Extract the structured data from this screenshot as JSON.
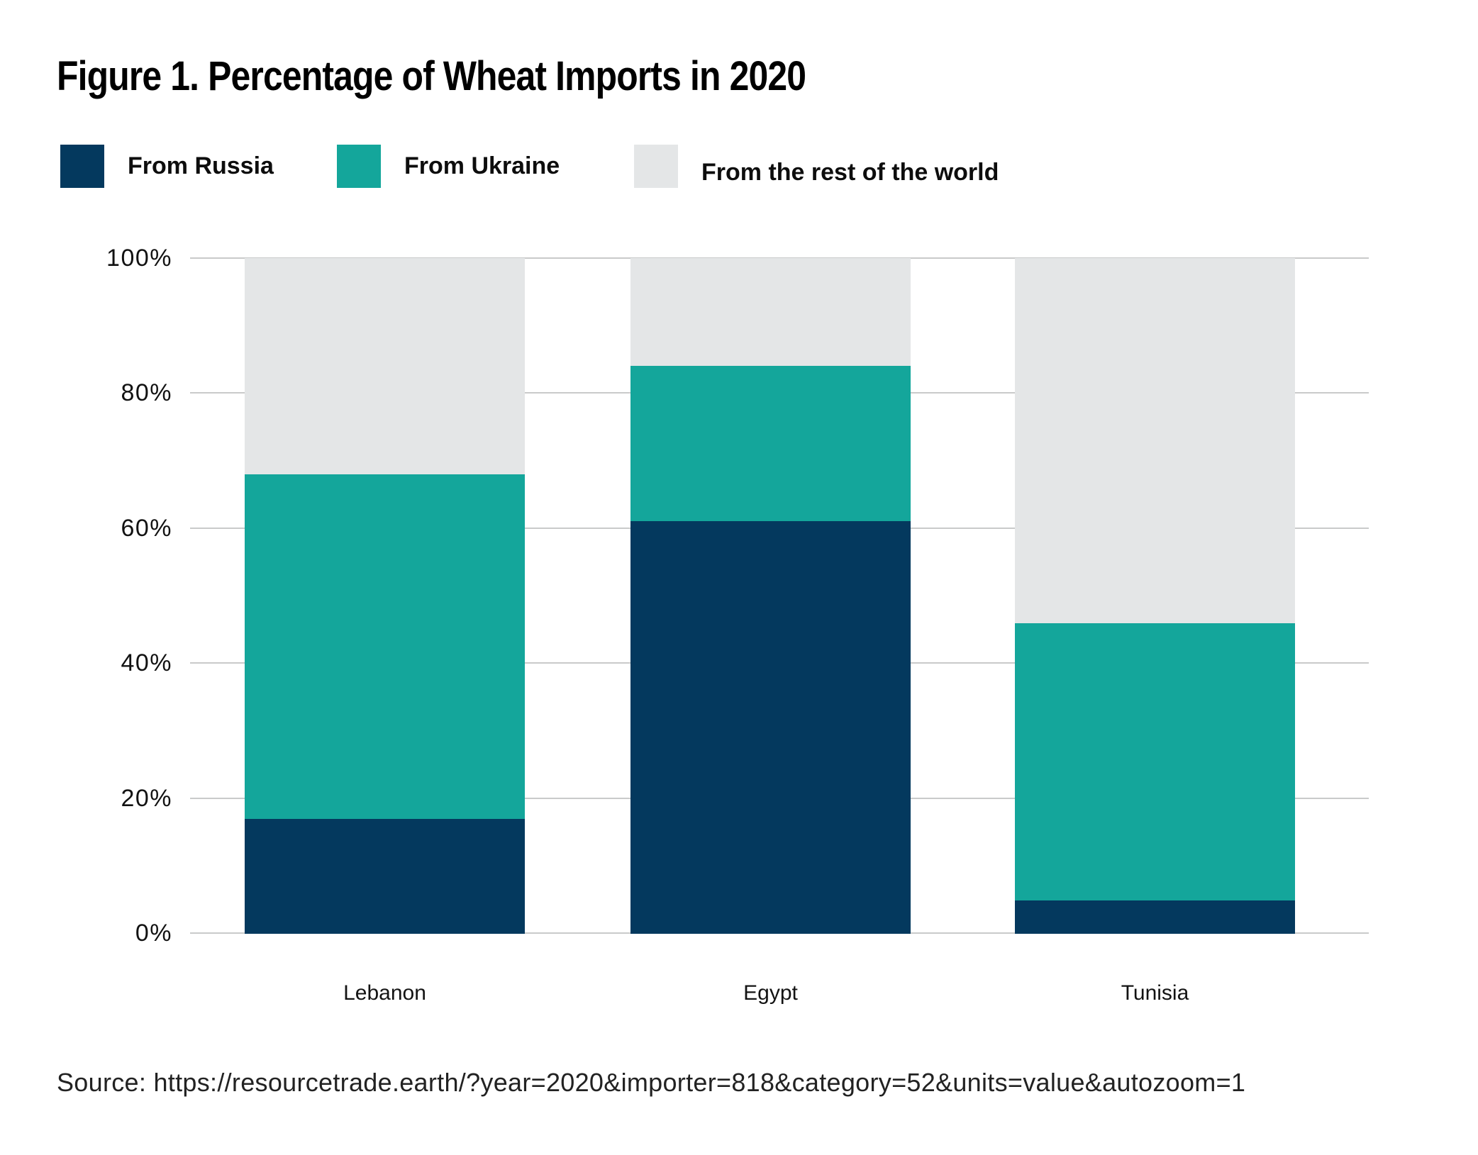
{
  "figure": {
    "title": "Figure 1. Percentage of Wheat Imports in 2020",
    "source_note": "Source: https://resourcetrade.earth/?year=2020&importer=818&category=52&units=value&autozoom=1"
  },
  "legend": {
    "items": [
      {
        "label": "From Russia",
        "color": "#04395e"
      },
      {
        "label": "From Ukraine",
        "color": "#14a69b"
      },
      {
        "label": "From the rest of the world",
        "color": "#e4e6e7"
      }
    ]
  },
  "chart_data": {
    "type": "bar",
    "stacked": true,
    "title": "Figure 1. Percentage of Wheat Imports in 2020",
    "categories": [
      "Lebanon",
      "Egypt",
      "Tunisia"
    ],
    "series": [
      {
        "name": "From Russia",
        "color": "#04395e",
        "values": [
          17,
          61,
          5
        ]
      },
      {
        "name": "From Ukraine",
        "color": "#14a69b",
        "values": [
          51,
          23,
          41
        ]
      },
      {
        "name": "From the rest of the world",
        "color": "#e4e6e7",
        "values": [
          32,
          16,
          54
        ]
      }
    ],
    "y_ticks": [
      "100%",
      "80%",
      "60%",
      "40%",
      "20%",
      "0%"
    ],
    "ylim": [
      0,
      100
    ],
    "unit": "%",
    "grid": true,
    "gridline_color": "#c9caca",
    "legend_position": "top",
    "xlabel": "",
    "ylabel": ""
  }
}
